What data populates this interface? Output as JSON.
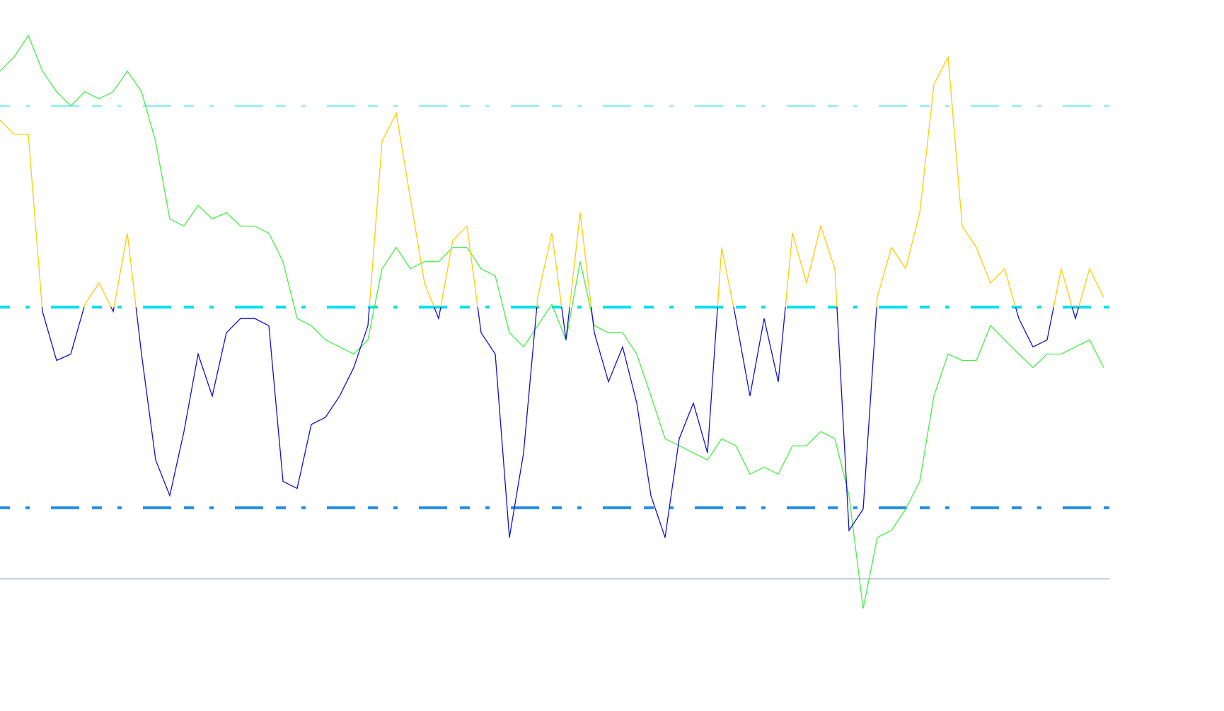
{
  "chart_data": {
    "type": "line",
    "x": [
      0,
      1,
      2,
      3,
      4,
      5,
      6,
      7,
      8,
      9,
      10,
      11,
      12,
      13,
      14,
      15,
      16,
      17,
      18,
      19,
      20,
      21,
      22,
      23,
      24,
      25,
      26,
      27,
      28,
      29,
      30,
      31,
      32,
      33,
      34,
      35,
      36,
      37,
      38,
      39,
      40,
      41,
      42,
      43,
      44,
      45,
      46,
      47,
      48,
      49,
      50,
      51,
      52,
      53,
      54,
      55,
      56,
      57,
      58,
      59,
      60,
      61,
      62,
      63,
      64,
      65,
      66,
      67,
      68,
      69,
      70,
      71,
      72,
      73,
      74,
      75,
      76,
      77,
      78
    ],
    "xlim": [
      0,
      78.4
    ],
    "ylim": [
      0,
      100
    ],
    "series": [
      {
        "color": "#44ee44",
        "values": [
          90.0,
          92.0,
          95.0,
          90.0,
          87.1,
          85.1,
          87.1,
          86.1,
          87.1,
          90.0,
          87.1,
          80.1,
          69.2,
          68.2,
          71.1,
          69.2,
          70.1,
          68.2,
          68.2,
          67.2,
          63.2,
          55.2,
          54.2,
          52.2,
          51.2,
          50.2,
          52.2,
          62.2,
          65.2,
          62.2,
          63.2,
          63.2,
          65.2,
          65.2,
          62.2,
          61.2,
          53.2,
          51.2,
          54.2,
          57.2,
          52.2,
          63.2,
          54.2,
          53.2,
          53.2,
          50.2,
          44.3,
          38.3,
          37.3,
          36.3,
          35.3,
          38.3,
          37.3,
          33.3,
          34.3,
          33.3,
          37.3,
          37.3,
          39.3,
          38.3,
          30.3,
          14.4,
          24.4,
          25.4,
          28.4,
          32.3,
          44.3,
          50.2,
          49.3,
          49.3,
          54.2,
          52.2,
          50.2,
          48.3,
          50.2,
          50.2,
          51.2,
          52.2,
          48.3
        ]
      },
      {
        "color_above": "#ffcc00",
        "color_below": "#1010d0",
        "threshold": 56.8,
        "values": [
          83.1,
          81.1,
          81.1,
          56.2,
          49.3,
          50.2,
          57.2,
          60.2,
          56.2,
          67.2,
          50.2,
          35.3,
          30.3,
          39.3,
          50.2,
          44.3,
          53.2,
          55.2,
          55.2,
          54.2,
          32.3,
          31.3,
          40.3,
          41.3,
          44.3,
          48.3,
          54.2,
          80.1,
          84.1,
          72.1,
          60.2,
          55.2,
          66.2,
          68.2,
          53.2,
          50.2,
          24.4,
          36.3,
          58.2,
          67.2,
          52.2,
          70.1,
          53.2,
          46.3,
          51.2,
          43.3,
          30.3,
          24.4,
          38.3,
          43.3,
          36.3,
          65.2,
          55.2,
          44.3,
          55.2,
          46.3,
          67.2,
          60.2,
          68.2,
          62.2,
          25.4,
          28.4,
          58.2,
          65.2,
          62.2,
          70.1,
          88.1,
          92.0,
          68.2,
          65.2,
          60.2,
          62.2,
          55.2,
          51.2,
          52.2,
          62.2,
          55.2,
          62.2,
          58.2
        ]
      }
    ],
    "levels": [
      {
        "value": 85.1,
        "color": "#99eeee",
        "dashed": true
      },
      {
        "value": 56.8,
        "color": "#00e0ee",
        "dashed": true
      },
      {
        "value": 28.6,
        "color": "#1e88e5",
        "dashed": true
      },
      {
        "value": 18.6,
        "color": "#8090a8",
        "dashed": false
      }
    ]
  }
}
